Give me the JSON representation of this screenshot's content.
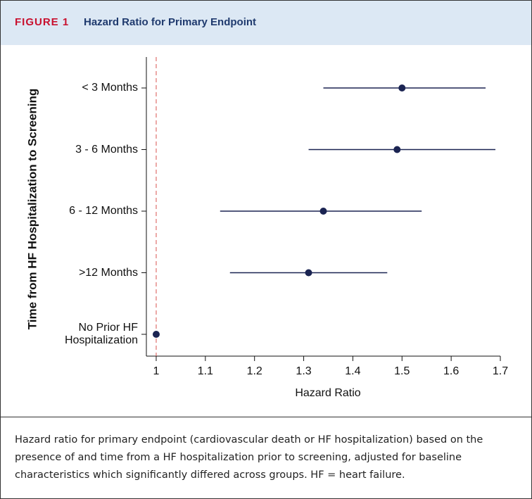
{
  "header": {
    "label": "FIGURE 1",
    "title": "Hazard Ratio for Primary Endpoint"
  },
  "chart_data": {
    "type": "forest",
    "xlabel": "Hazard Ratio",
    "ylabel": "Time from HF Hospitalization to Screening",
    "categories": [
      "< 3 Months",
      "3 - 6 Months",
      "6 - 12 Months",
      ">12 Months",
      "No Prior HF Hospitalization"
    ],
    "values": [
      1.5,
      1.49,
      1.34,
      1.31,
      1
    ],
    "lower": [
      1.34,
      1.31,
      1.13,
      1.15,
      null
    ],
    "upper": [
      1.67,
      1.69,
      1.54,
      1.47,
      null
    ],
    "color": "#1b2452",
    "reference_line": 1,
    "reference_color": "#d9534f",
    "xlim": [
      0.98,
      1.7
    ],
    "xticks": [
      1,
      1.1,
      1.2,
      1.3,
      1.4,
      1.5,
      1.6,
      1.7
    ]
  },
  "caption": "Hazard ratio for primary endpoint (cardiovascular death or HF hospitalization) based on the presence of and time from a HF hospitalization prior to screening, adjusted for baseline characteristics which significantly differed across groups. HF = heart failure."
}
